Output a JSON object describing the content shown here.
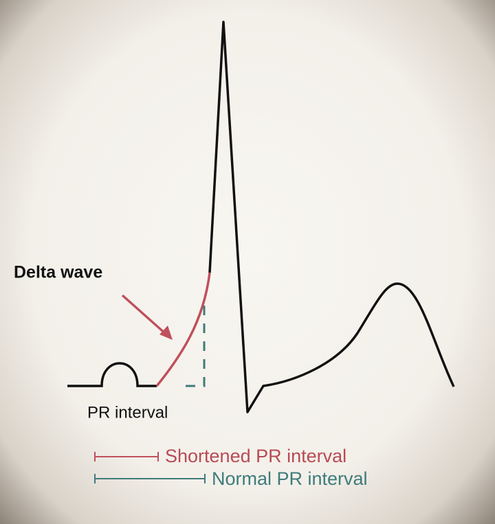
{
  "labels": {
    "delta_wave": "Delta wave",
    "pr_interval": "PR interval"
  },
  "legend": [
    {
      "label": "Shortened PR interval"
    },
    {
      "label": "Normal PR interval"
    }
  ]
}
